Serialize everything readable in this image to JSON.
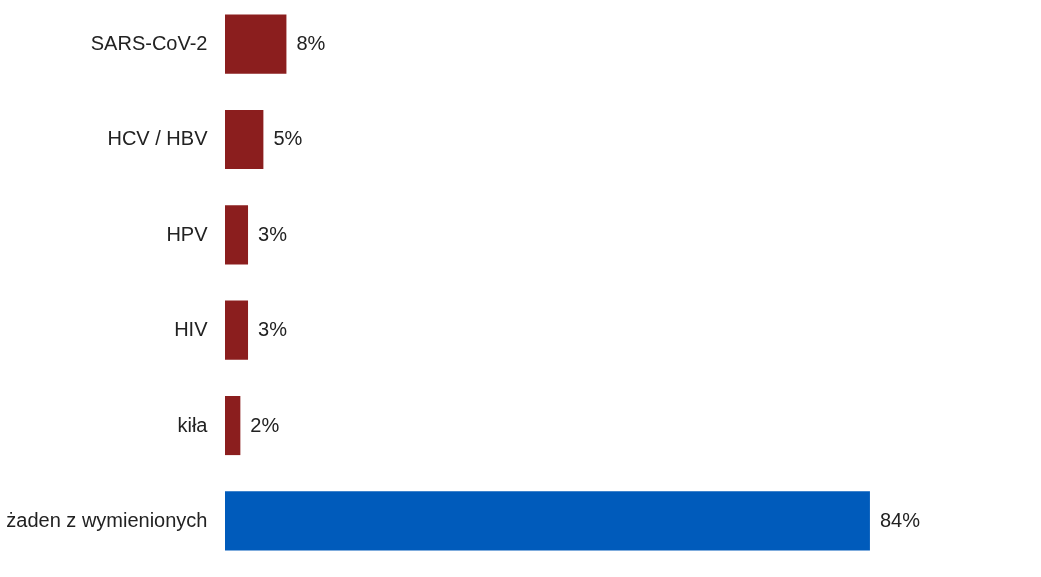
{
  "chart_data": {
    "type": "bar",
    "orientation": "horizontal",
    "categories": [
      "SARS-CoV-2",
      "HCV /  HBV",
      "HPV",
      "HIV",
      "kiła",
      "żaden z wymienionych"
    ],
    "values": [
      8,
      5,
      3,
      3,
      2,
      84
    ],
    "colors": [
      "#8b1e1e",
      "#8b1e1e",
      "#8b1e1e",
      "#8b1e1e",
      "#8b1e1e",
      "#005bbb"
    ],
    "value_labels": [
      "8%",
      "5%",
      "3%",
      "3%",
      "2%",
      "84%"
    ]
  }
}
